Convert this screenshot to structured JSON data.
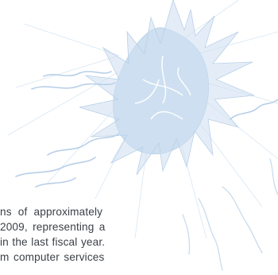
{
  "colors": {
    "illustration": "#c9dcef",
    "illustration_dark": "#b7cfe8",
    "text": "#3a3f45",
    "background": "#ffffff"
  },
  "illustration": {
    "name": "sunburst-ornament"
  },
  "body_text": {
    "lines": [
      "ns of approximately",
      "2009, representing a",
      "in the last fiscal year.",
      "m computer services"
    ]
  }
}
